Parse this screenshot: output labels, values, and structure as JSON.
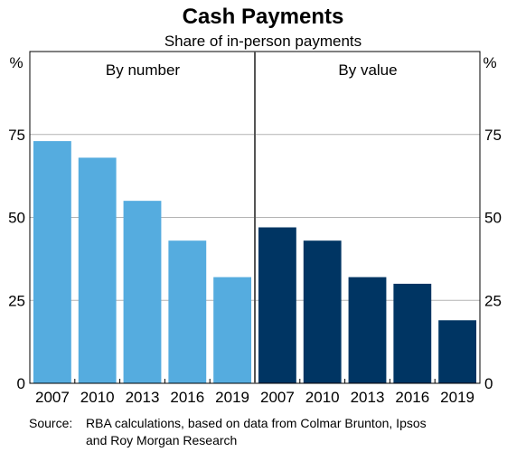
{
  "chart_data": {
    "type": "bar",
    "title": "Cash Payments",
    "subtitle": "Share of in-person payments",
    "y_unit_left": "%",
    "y_unit_right": "%",
    "ylim": [
      0,
      100
    ],
    "yticks": [
      0,
      25,
      50,
      75
    ],
    "grid": true,
    "categories": [
      "2007",
      "2010",
      "2013",
      "2016",
      "2019"
    ],
    "panels": [
      {
        "label": "By number",
        "color": "#55acdf",
        "values": [
          73,
          68,
          55,
          43,
          32
        ]
      },
      {
        "label": "By value",
        "color": "#003563",
        "values": [
          47,
          43,
          32,
          30,
          19
        ]
      }
    ],
    "source_prefix": "Source:",
    "source_line1": "RBA calculations, based on data from Colmar Brunton, Ipsos",
    "source_line2": "and Roy Morgan Research"
  }
}
